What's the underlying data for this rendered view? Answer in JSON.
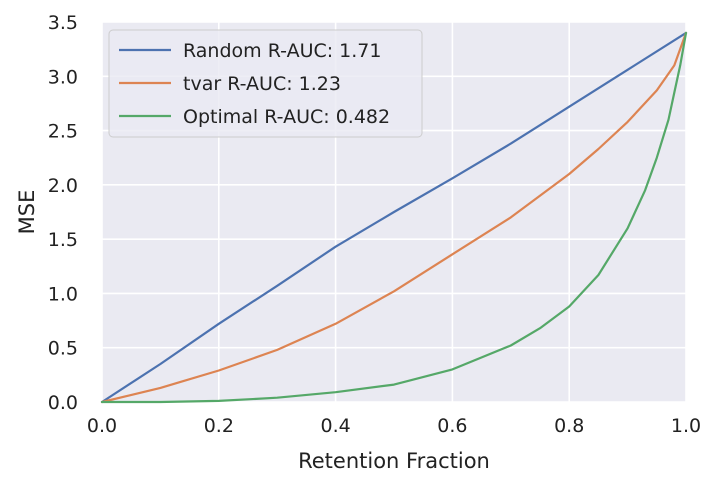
{
  "chart_data": {
    "type": "line",
    "title": "",
    "xlabel": "Retention Fraction",
    "ylabel": "MSE",
    "xlim": [
      0.0,
      1.0
    ],
    "ylim": [
      0.0,
      3.5
    ],
    "x_ticks": [
      "0.0",
      "0.2",
      "0.4",
      "0.6",
      "0.8",
      "1.0"
    ],
    "y_ticks": [
      "0.0",
      "0.5",
      "1.0",
      "1.5",
      "2.0",
      "2.5",
      "3.0",
      "3.5"
    ],
    "grid": true,
    "legend_position": "top-left",
    "series": [
      {
        "name": "Random R-AUC: 1.71",
        "color": "#4c72b0",
        "x": [
          0.0,
          0.1,
          0.2,
          0.3,
          0.4,
          0.5,
          0.6,
          0.7,
          0.8,
          0.9,
          1.0
        ],
        "y": [
          0.0,
          0.35,
          0.72,
          1.07,
          1.43,
          1.75,
          2.06,
          2.38,
          2.72,
          3.06,
          3.4
        ]
      },
      {
        "name": "tvar R-AUC: 1.23",
        "color": "#dd8452",
        "x": [
          0.0,
          0.1,
          0.2,
          0.3,
          0.4,
          0.5,
          0.6,
          0.7,
          0.8,
          0.85,
          0.9,
          0.95,
          0.98,
          1.0
        ],
        "y": [
          0.0,
          0.13,
          0.29,
          0.48,
          0.72,
          1.02,
          1.36,
          1.7,
          2.1,
          2.33,
          2.58,
          2.87,
          3.1,
          3.4
        ]
      },
      {
        "name": "Optimal R-AUC: 0.482",
        "color": "#55a868",
        "x": [
          0.0,
          0.1,
          0.2,
          0.3,
          0.4,
          0.5,
          0.6,
          0.7,
          0.75,
          0.8,
          0.85,
          0.9,
          0.93,
          0.95,
          0.97,
          0.98,
          0.99,
          1.0
        ],
        "y": [
          0.0,
          0.0,
          0.01,
          0.04,
          0.09,
          0.16,
          0.3,
          0.52,
          0.68,
          0.88,
          1.17,
          1.6,
          1.95,
          2.25,
          2.6,
          2.85,
          3.1,
          3.4
        ]
      }
    ]
  }
}
